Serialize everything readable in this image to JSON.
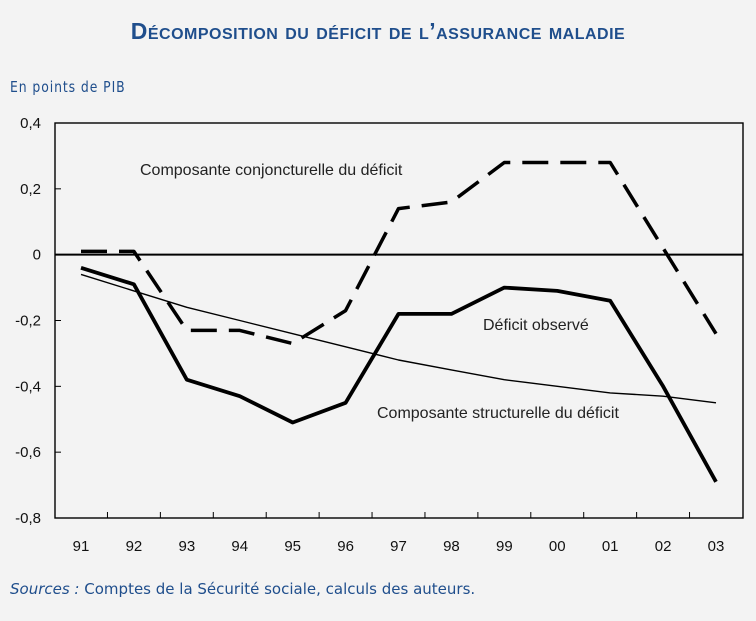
{
  "title": "Décomposition du déficit de l’assurance maladie",
  "unit_label": "En points de PIB",
  "source": {
    "label": "Sources :",
    "text": "Comptes de la Sécurité sociale, calculs des auteurs."
  },
  "chart_data": {
    "type": "line",
    "categories": [
      "91",
      "92",
      "93",
      "94",
      "95",
      "96",
      "97",
      "98",
      "99",
      "00",
      "01",
      "02",
      "03"
    ],
    "y_tick_labels": [
      "0,4",
      "0,2",
      "0",
      "-0,2",
      "-0,4",
      "-0,6",
      "-0,8"
    ],
    "y_ticks": [
      0.4,
      0.2,
      0,
      -0.2,
      -0.4,
      -0.6,
      -0.8
    ],
    "ylim": [
      -0.8,
      0.4
    ],
    "grid": false,
    "series": [
      {
        "key": "conjoncturelle",
        "name": "Composante conjoncturelle du déficit",
        "style": "dashed",
        "values": [
          0.01,
          0.01,
          -0.23,
          -0.23,
          -0.27,
          -0.17,
          0.14,
          0.16,
          0.28,
          0.28,
          0.28,
          0.02,
          -0.24
        ]
      },
      {
        "key": "observe",
        "name": "Déficit observé",
        "style": "solid-thick",
        "values": [
          -0.04,
          -0.09,
          -0.38,
          -0.43,
          -0.51,
          -0.45,
          -0.18,
          -0.18,
          -0.1,
          -0.11,
          -0.14,
          -0.4,
          -0.69
        ]
      },
      {
        "key": "structurelle",
        "name": "Composante structurelle du déficit",
        "style": "solid-thin",
        "values": [
          -0.06,
          -0.11,
          -0.16,
          -0.2,
          -0.24,
          -0.28,
          -0.32,
          -0.35,
          -0.38,
          -0.4,
          -0.42,
          -0.43,
          -0.45
        ]
      }
    ],
    "annotations": [
      {
        "text": "Composante conjoncturelle du déficit",
        "series": "conjoncturelle"
      },
      {
        "text": "Déficit observé",
        "series": "observe"
      },
      {
        "text": "Composante structurelle du déficit",
        "series": "structurelle"
      }
    ],
    "colors": {
      "lines": "#000000",
      "text": "#1f4e8c"
    }
  }
}
